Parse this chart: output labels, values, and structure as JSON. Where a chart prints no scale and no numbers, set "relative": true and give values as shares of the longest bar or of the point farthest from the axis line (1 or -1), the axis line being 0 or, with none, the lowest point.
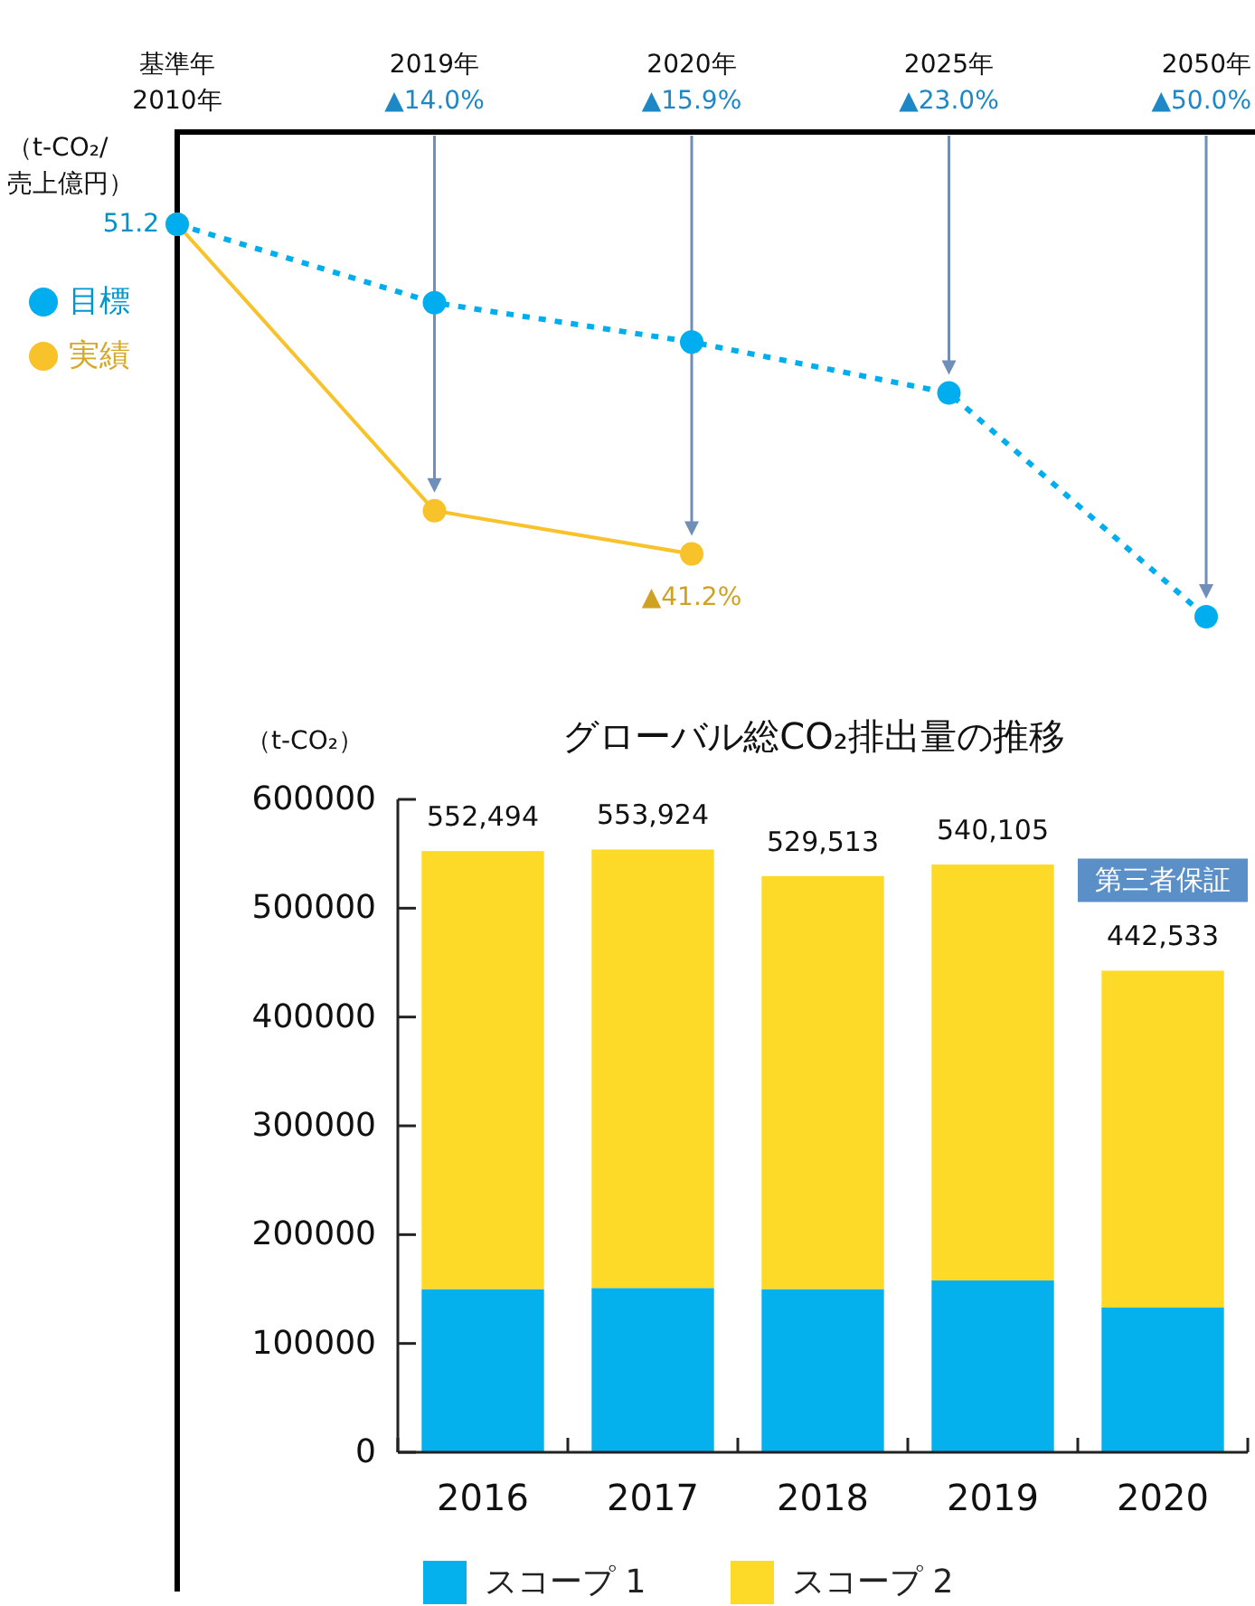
{
  "chart_data": [
    {
      "type": "line",
      "relative": true,
      "ylabel": "（t-CO₂/\n売上億円）",
      "categories": [
        "基準年\n2010年",
        "2019年\n▲14.0%",
        "2020年\n▲15.9%",
        "2025年\n▲23.0%",
        "2050年\n▲50.0%"
      ],
      "legend": "left",
      "marker": "circle",
      "grid": "x",
      "series": [
        {
          "name": "目標",
          "color": "#00aeef",
          "values": [
            1,
            0.8,
            0.7,
            0.57,
            0
          ],
          "line_style": "dotted"
        },
        {
          "name": "実績",
          "color": "#f8c22a",
          "values": [
            1,
            0.27,
            0.16,
            null,
            null
          ],
          "line_style": "solid"
        }
      ],
      "annotations": [
        {
          "text": "51.2",
          "x": "基準年\n2010年",
          "y": 1
        },
        {
          "text": "▲41.2%",
          "x": "2020年\n▲15.9%",
          "y": 0.16
        }
      ]
    },
    {
      "type": "bar",
      "stacked": true,
      "title": "グローバル総CO₂排出量の推移",
      "ylabel": "（t-CO₂）",
      "categories": [
        "2016",
        "2017",
        "2018",
        "2019",
        "2020"
      ],
      "ylim": [
        0,
        600000
      ],
      "yticks": [
        0,
        100000,
        200000,
        300000,
        400000,
        500000,
        600000
      ],
      "legend": "bottom",
      "grid": false,
      "series": [
        {
          "name": "スコープ 1",
          "color": "#05b1ec",
          "values": [
            150000,
            151000,
            150000,
            158000,
            133000
          ]
        },
        {
          "name": "スコープ 2",
          "color": "#fdd928",
          "values": [
            402494,
            402924,
            379513,
            382105,
            309533
          ]
        }
      ],
      "totals": [
        "552,494",
        "553,924",
        "529,513",
        "540,105",
        "442,533"
      ],
      "annotations": [
        {
          "text": "第三者保証",
          "x": "2020",
          "y": 442533
        }
      ]
    }
  ]
}
